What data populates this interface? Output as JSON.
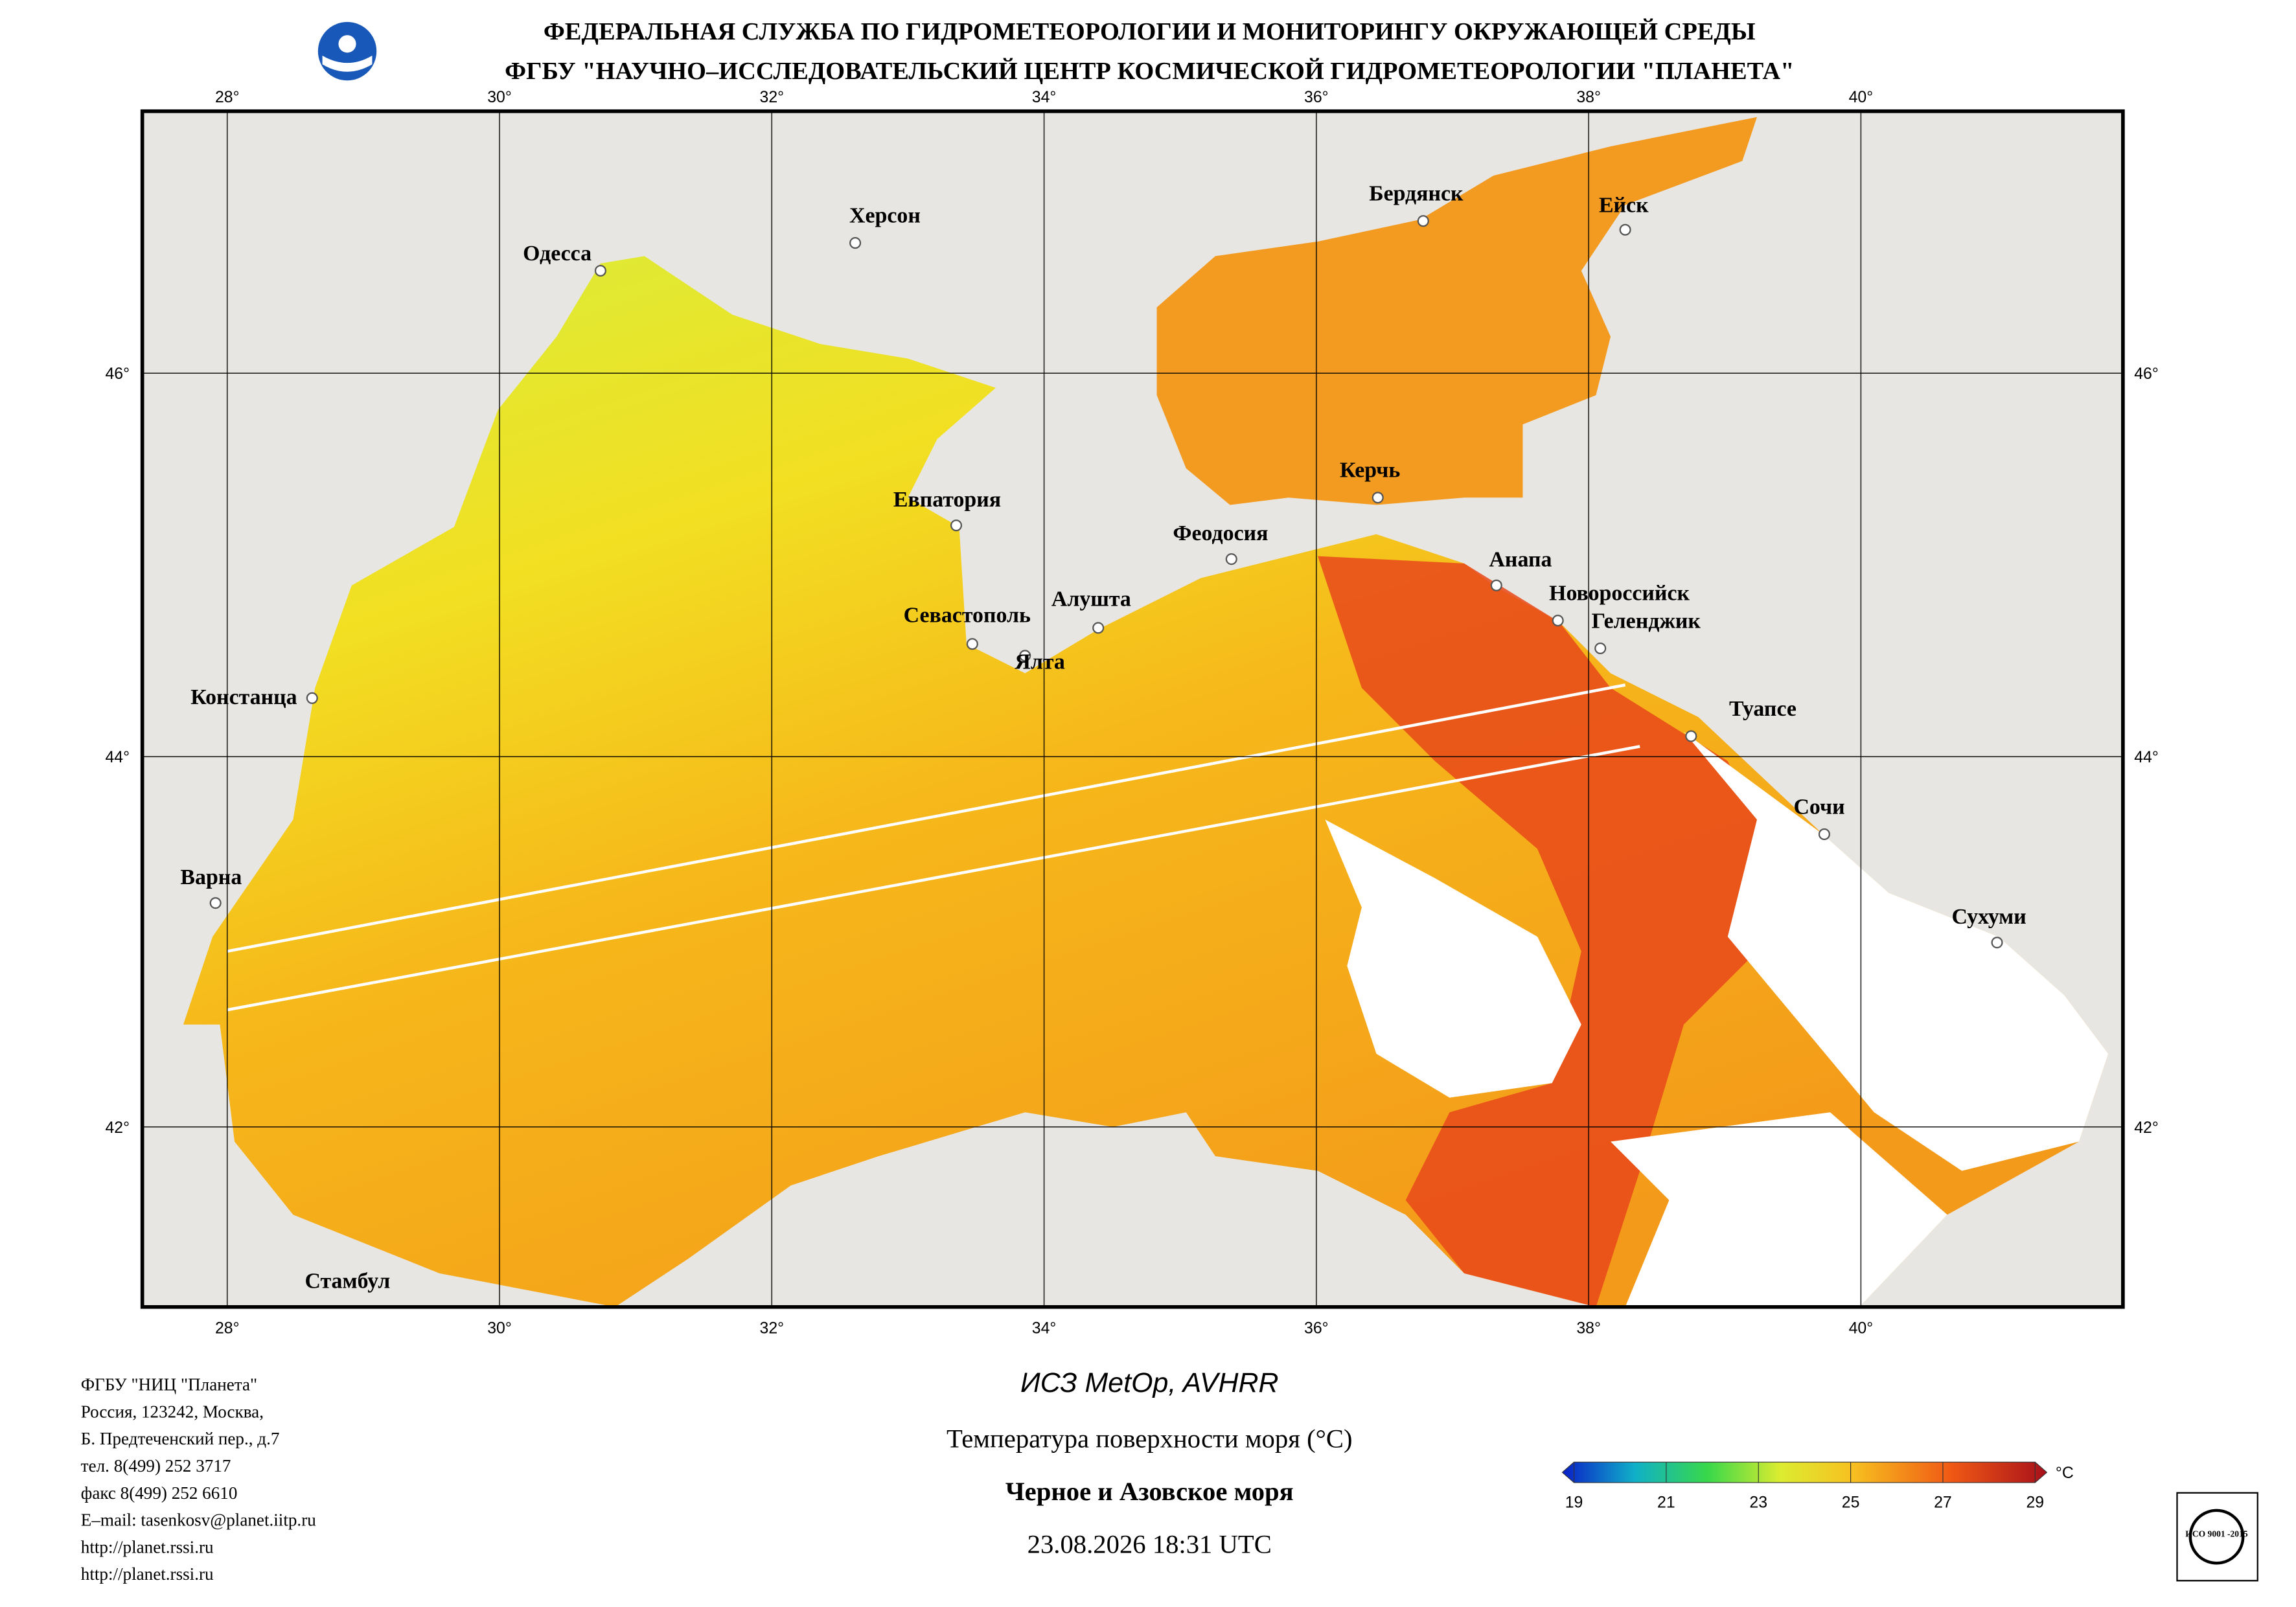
{
  "header": {
    "lines": [
      "ФЕДЕРАЛЬНАЯ СЛУЖБА ПО ГИДРОМЕТЕОРОЛОГИИ И МОНИТОРИНГУ ОКРУЖАЮЩЕЙ СРЕДЫ",
      "ФГБУ \"НАУЧНО–ИССЛЕДОВАТЕЛЬСКИЙ ЦЕНТР КОСМИЧЕСКОЙ ГИДРОМЕТЕОРОЛОГИИ \"ПЛАНЕТА\""
    ]
  },
  "map": {
    "lon_labels": [
      "28°",
      "30°",
      "32°",
      "34°",
      "36°",
      "38°",
      "40°"
    ],
    "lat_labels": [
      "46°",
      "44°",
      "42°"
    ],
    "cities": [
      "Одесса",
      "Херсон",
      "Бердянск",
      "Ейск",
      "Евпатория",
      "Керчь",
      "Феодосия",
      "Анапа",
      "Новороссийск",
      "Геленджик",
      "Алушта",
      "Севастополь",
      "Ялта",
      "Констанца",
      "Туапсе",
      "Сочи",
      "Варна",
      "Сухуми",
      "Стамбул"
    ]
  },
  "footer": {
    "contacts": [
      "ФГБУ \"НИЦ \"Планета\"",
      "Россия, 123242, Москва,",
      "Б. Предтеченский пер., д.7",
      "тел. 8(499) 252 3717",
      "факс 8(499) 252 6610",
      "E–mail: tasenkosv@planet.iitp.ru",
      "http://planet.rssi.ru",
      "http://planet.rssi.ru"
    ],
    "satellite": "ИСЗ MetOp, AVHRR",
    "product": "Температура поверхности моря (°C)",
    "region": "Черное и Азовское моря",
    "datetime": "23.08.2026 18:31 UTC",
    "badge": "ИСО 9001 -2015"
  },
  "colorbar": {
    "lim": [
      19,
      29
    ],
    "ticks": [
      19,
      21,
      23,
      25,
      27,
      29
    ],
    "unit": "°C"
  }
}
